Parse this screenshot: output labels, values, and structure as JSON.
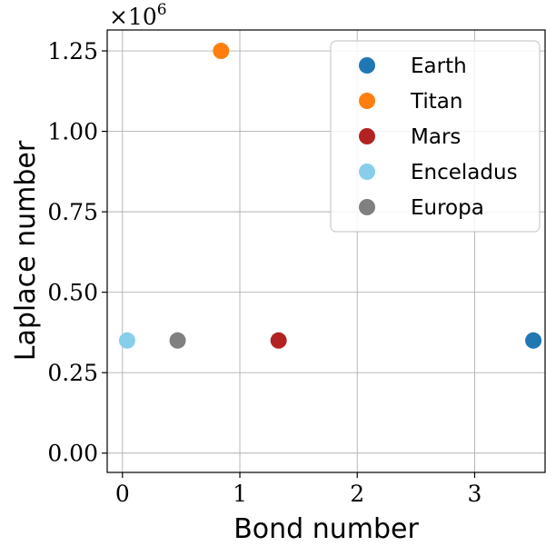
{
  "chart_data": {
    "type": "scatter",
    "title": "",
    "xlabel": "Bond number",
    "ylabel": "Laplace number",
    "xlim": [
      -0.13,
      3.6
    ],
    "ylim": [
      -60000,
      1315000
    ],
    "x_ticks": [
      0,
      1,
      2,
      3
    ],
    "x_tick_labels": [
      "0",
      "1",
      "2",
      "3"
    ],
    "y_ticks": [
      0,
      250000,
      500000,
      750000,
      1000000,
      1250000
    ],
    "y_tick_labels": [
      "0.00",
      "0.25",
      "0.50",
      "0.75",
      "1.00",
      "1.25"
    ],
    "y_offset_base": "×10",
    "y_offset_exp": "6",
    "grid": true,
    "legend_position": "top-right",
    "series": [
      {
        "name": "Earth",
        "color": "#1f77b4",
        "points": [
          {
            "x": 3.5,
            "y": 350000
          }
        ]
      },
      {
        "name": "Titan",
        "color": "#ff7f0e",
        "points": [
          {
            "x": 0.84,
            "y": 1250000
          }
        ]
      },
      {
        "name": "Mars",
        "color": "#b22222",
        "points": [
          {
            "x": 1.33,
            "y": 350000
          }
        ]
      },
      {
        "name": "Enceladus",
        "color": "#87ceeb",
        "points": [
          {
            "x": 0.04,
            "y": 350000
          }
        ]
      },
      {
        "name": "Europa",
        "color": "#808080",
        "points": [
          {
            "x": 0.47,
            "y": 350000
          }
        ]
      }
    ]
  }
}
